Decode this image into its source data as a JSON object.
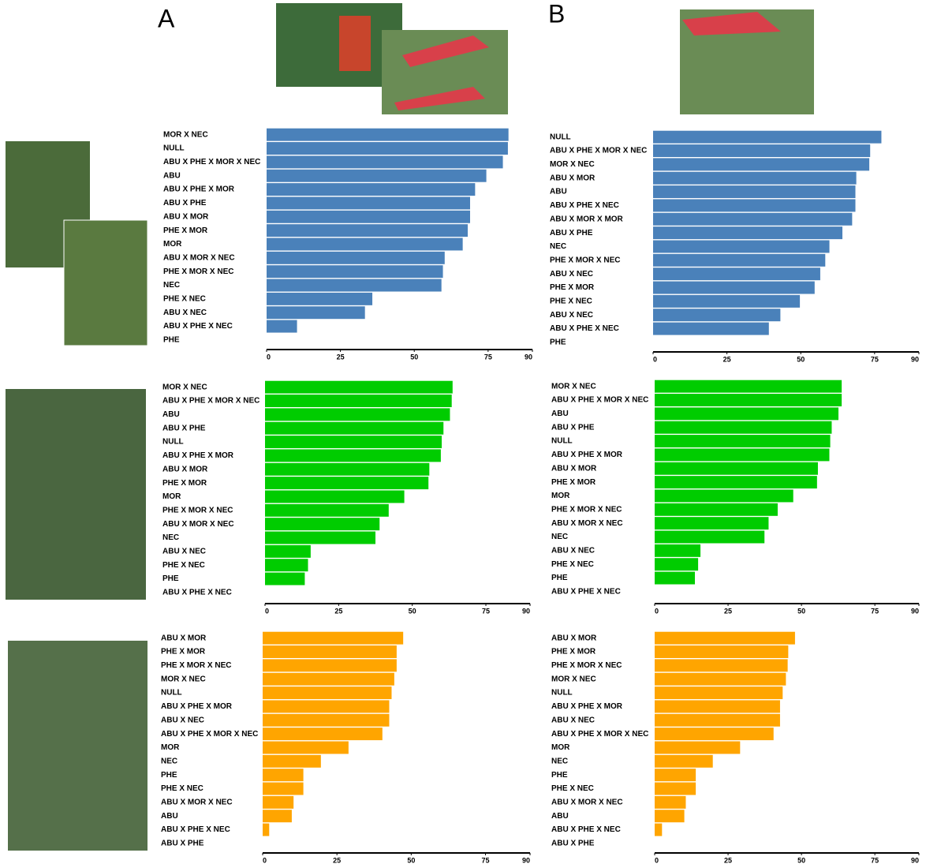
{
  "panel_labels": [
    "A",
    "B"
  ],
  "chart_data": [
    {
      "type": "bar",
      "orientation": "horizontal",
      "color": "#4a81ba",
      "xlim": [
        0,
        90
      ],
      "xticks": [
        0,
        25,
        50,
        75,
        90
      ],
      "categories": [
        "MOR X NEC",
        "NULL",
        "ABU X PHE X MOR X NEC",
        "ABU",
        "ABU X PHE X MOR",
        "ABU X PHE",
        "ABU X MOR",
        "PHE X MOR",
        "MOR",
        "ABU X MOR X NEC",
        "PHE X MOR X NEC",
        "NEC",
        "PHE X NEC",
        "ABU X NEC",
        "ABU X PHE X NEC",
        "PHE"
      ],
      "values": [
        81.9,
        81.7,
        80.0,
        74.4,
        70.6,
        68.9,
        68.9,
        68.1,
        66.4,
        60.3,
        59.7,
        59.2,
        35.8,
        33.3,
        10.3,
        0
      ]
    },
    {
      "type": "bar",
      "orientation": "horizontal",
      "color": "#4a81ba",
      "xlim": [
        0,
        90
      ],
      "xticks": [
        0,
        25,
        50,
        75,
        90
      ],
      "categories": [
        "NULL",
        "ABU X PHE X MOR X NEC",
        "MOR X NEC",
        "ABU X MOR",
        "ABU",
        "ABU X PHE X NEC",
        "ABU X MOR X MOR",
        "ABU X PHE",
        "NEC",
        "PHE X MOR X NEC",
        "ABU X NEC",
        "PHE X MOR",
        "PHE X NEC",
        "ABU X NEC",
        "ABU X PHE X NEC",
        "PHE"
      ],
      "values": [
        77.3,
        73.5,
        73.2,
        68.8,
        68.5,
        68.5,
        67.4,
        64.1,
        59.7,
        58.3,
        56.6,
        54.7,
        49.7,
        43.1,
        39.2,
        0
      ]
    },
    {
      "type": "bar",
      "orientation": "horizontal",
      "color": "#00cc00",
      "xlim": [
        0,
        90
      ],
      "xticks": [
        0,
        25,
        50,
        75,
        90
      ],
      "categories": [
        "MOR X NEC",
        "ABU X PHE X MOR X NEC",
        "ABU",
        "ABU X PHE",
        "NULL",
        "ABU X PHE X MOR",
        "ABU X MOR",
        "PHE X MOR",
        "MOR",
        "PHE X MOR X NEC",
        "ABU X MOR X NEC",
        "NEC",
        "ABU X NEC",
        "PHE X NEC",
        "PHE",
        "ABU X PHE X NEC"
      ],
      "values": [
        63.7,
        63.4,
        62.8,
        60.6,
        60.0,
        59.7,
        55.8,
        55.5,
        47.3,
        42.0,
        38.9,
        37.5,
        15.5,
        14.6,
        13.5,
        0
      ]
    },
    {
      "type": "bar",
      "orientation": "horizontal",
      "color": "#00cc00",
      "xlim": [
        0,
        90
      ],
      "xticks": [
        0,
        25,
        50,
        75,
        90
      ],
      "categories": [
        "MOR X NEC",
        "ABU X PHE X MOR X NEC",
        "ABU",
        "ABU X PHE",
        "NULL",
        "ABU X PHE X MOR",
        "ABU X MOR",
        "PHE X MOR",
        "MOR",
        "PHE X MOR X NEC",
        "ABU X MOR X NEC",
        "NEC",
        "ABU X NEC",
        "PHE X NEC",
        "PHE",
        "ABU X PHE X NEC"
      ],
      "values": [
        63.7,
        63.7,
        62.6,
        60.3,
        59.8,
        59.5,
        55.6,
        55.3,
        47.2,
        41.9,
        38.8,
        37.4,
        15.6,
        14.8,
        13.7,
        0
      ]
    },
    {
      "type": "bar",
      "orientation": "horizontal",
      "color": "#ffa500",
      "xlim": [
        0,
        90
      ],
      "xticks": [
        0,
        25,
        50,
        75,
        90
      ],
      "categories": [
        "ABU X MOR",
        "PHE X MOR",
        "PHE X MOR X NEC",
        "MOR X NEC",
        "NULL",
        "ABU X PHE X MOR",
        "ABU X NEC",
        "ABU X PHE X MOR X NEC",
        "MOR",
        "NEC",
        "PHE",
        "PHE X NEC",
        "ABU X MOR X NEC",
        "ABU",
        "ABU X PHE X NEC",
        "ABU X PHE"
      ],
      "values": [
        47.3,
        45.1,
        45.1,
        44.3,
        43.4,
        42.6,
        42.6,
        40.3,
        28.9,
        19.6,
        13.7,
        13.7,
        10.4,
        9.8,
        2.2,
        0
      ]
    },
    {
      "type": "bar",
      "orientation": "horizontal",
      "color": "#ffa500",
      "xlim": [
        0,
        90
      ],
      "xticks": [
        0,
        25,
        50,
        75,
        90
      ],
      "categories": [
        "ABU X MOR",
        "PHE X MOR",
        "PHE X MOR X NEC",
        "MOR X NEC",
        "NULL",
        "ABU X PHE X MOR",
        "ABU X NEC",
        "ABU X PHE X MOR X NEC",
        "MOR",
        "NEC",
        "PHE",
        "PHE X NEC",
        "ABU X MOR X NEC",
        "ABU",
        "ABU X PHE X NEC",
        "ABU X PHE"
      ],
      "values": [
        47.8,
        45.5,
        45.3,
        44.7,
        43.6,
        42.7,
        42.7,
        40.5,
        29.1,
        19.8,
        14.0,
        14.0,
        10.6,
        10.1,
        2.5,
        0
      ]
    }
  ]
}
